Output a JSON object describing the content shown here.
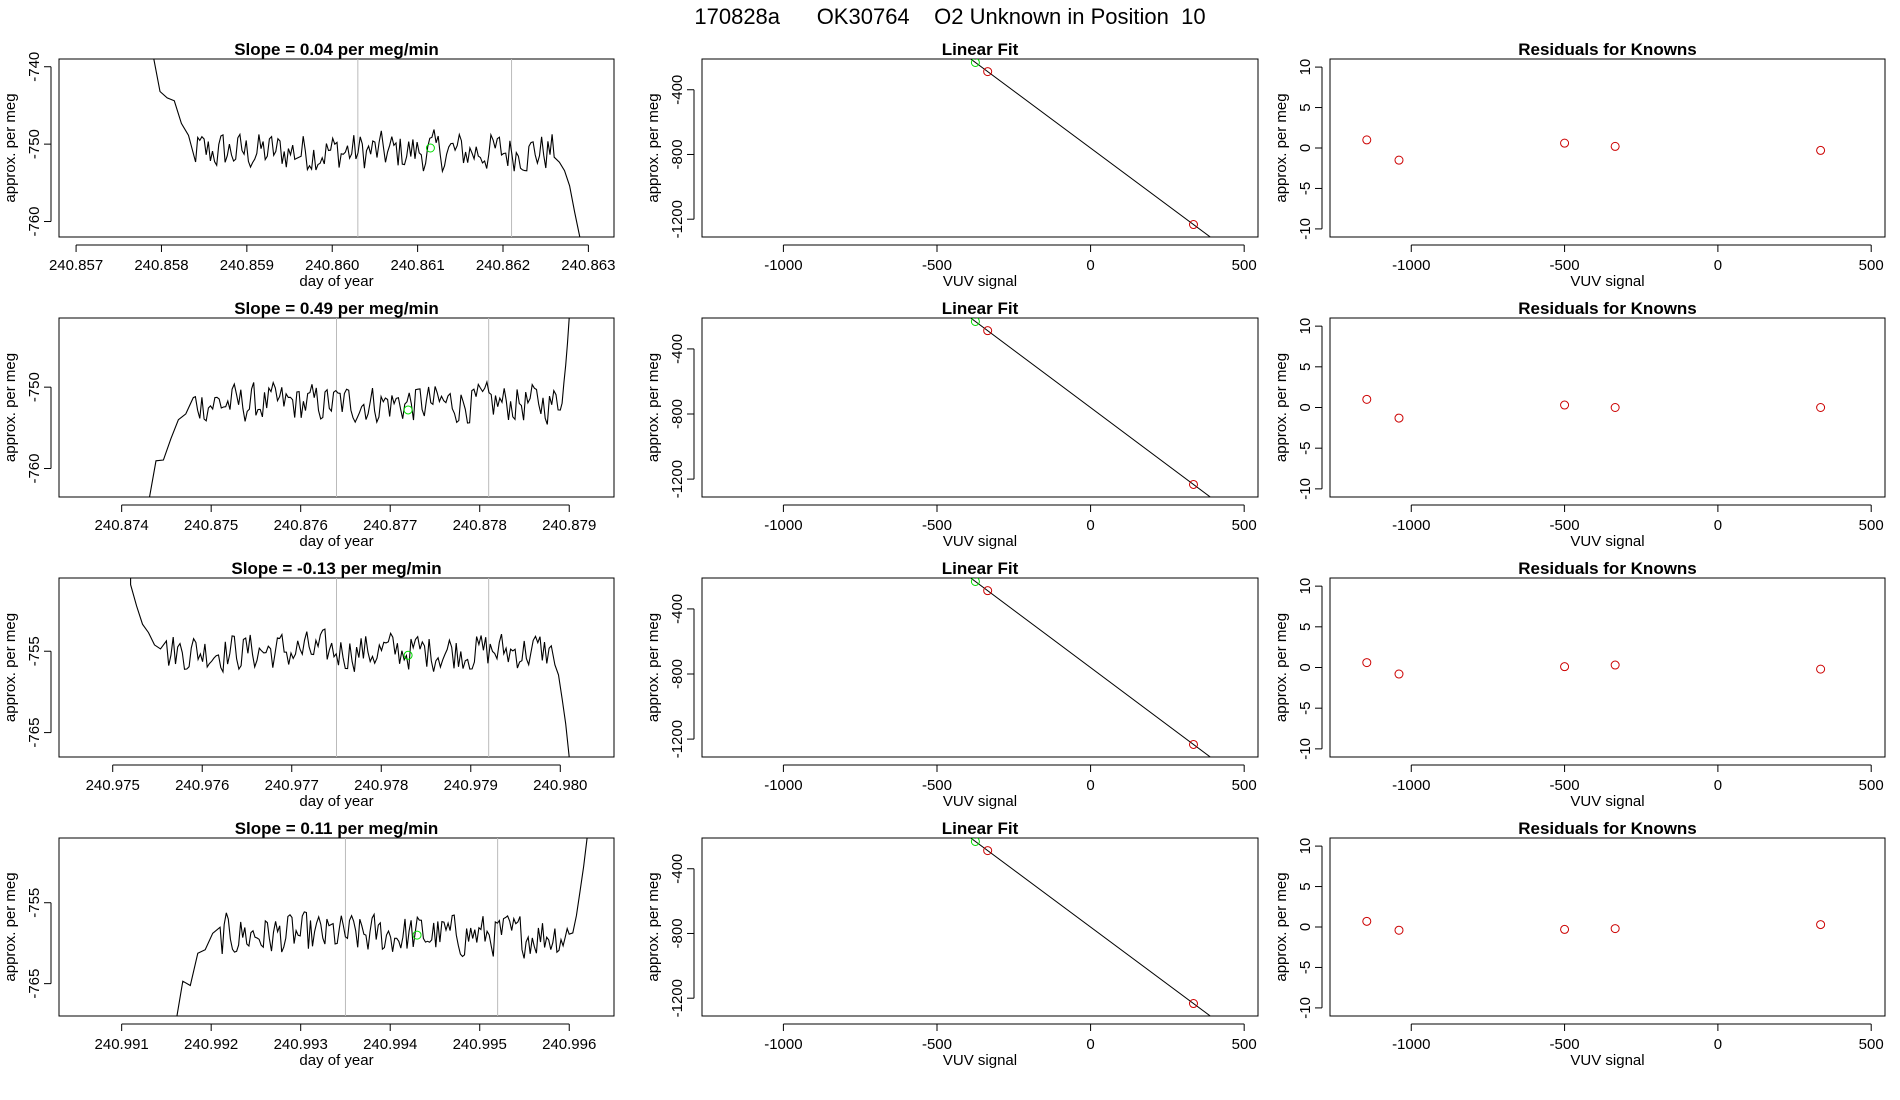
{
  "page": {
    "title": "170828a      OK30764    O2 Unknown in Position  10"
  },
  "colors": {
    "trace": "#000000",
    "known": "#cc0000",
    "unknown": "#00dd00",
    "marker": "#bbbbbb"
  },
  "fit_model": {
    "slope": -1.4106,
    "intercept": -760.4
  },
  "known_signal": [
    -1145,
    -1040,
    -500,
    -335,
    335
  ],
  "unknown_signal": -375,
  "chart_data": [
    {
      "type": "line",
      "kind": "trace",
      "title": "Slope =  0.04  per meg/min",
      "xlabel": "day of year",
      "ylabel": "approx. per meg",
      "xlim": [
        240.8568,
        240.8633
      ],
      "ylim": [
        -762,
        -739
      ],
      "xticks": [
        "240.857",
        "240.858",
        "240.859",
        "240.860",
        "240.861",
        "240.862",
        "240.863"
      ],
      "yticks": [
        "-740",
        "-750",
        "-760"
      ],
      "vlines": [
        240.8603,
        240.8621
      ],
      "unknown_point": [
        240.86115,
        -750.5
      ],
      "start": [
        240.8579,
        -739
      ],
      "flat_start": 240.8584,
      "flat_end": 240.8626,
      "end": [
        240.8629,
        -762
      ],
      "level": -751,
      "noise": 2.5
    },
    {
      "type": "scatter",
      "kind": "fit",
      "title": "Linear Fit",
      "xlabel": "VUV signal",
      "ylabel": "approx. per meg",
      "xlim": [
        -1265,
        545
      ],
      "ylim": [
        -1310,
        -210
      ],
      "xticks": [
        "-1000",
        "-500",
        "0",
        "500"
      ],
      "yticks": [
        "-400",
        "-800",
        "-1200"
      ],
      "fit_line_x": [
        -1200,
        450
      ]
    },
    {
      "type": "scatter",
      "kind": "resid",
      "title": "Residuals for Knowns",
      "xlabel": "VUV signal",
      "ylabel": "approx. per meg",
      "xlim": [
        -1265,
        545
      ],
      "ylim": [
        -11,
        11
      ],
      "xticks": [
        "-1000",
        "-500",
        "0",
        "500"
      ],
      "yticks": [
        "10",
        "5",
        "0",
        "-5",
        "-10"
      ],
      "residuals": [
        1.0,
        -1.5,
        0.6,
        0.2,
        -0.3
      ]
    },
    {
      "type": "line",
      "kind": "trace",
      "title": "Slope =  0.49  per meg/min",
      "xlabel": "day of year",
      "ylabel": "approx. per meg",
      "xlim": [
        240.8733,
        240.8795
      ],
      "ylim": [
        -763.5,
        -741.5
      ],
      "xticks": [
        "240.874",
        "240.875",
        "240.876",
        "240.877",
        "240.878",
        "240.879"
      ],
      "yticks": [
        "-750",
        "-760"
      ],
      "vlines": [
        240.8764,
        240.8781
      ],
      "unknown_point": [
        240.8772,
        -752.8
      ],
      "start": [
        240.8743,
        -763.5
      ],
      "flat_start": 240.8748,
      "flat_end": 240.8789,
      "end": [
        240.879,
        -741.5
      ],
      "level": -752,
      "noise": 2.3
    },
    {
      "type": "scatter",
      "kind": "fit",
      "title": "Linear Fit",
      "xlabel": "VUV signal",
      "ylabel": "approx. per meg",
      "xlim": [
        -1265,
        545
      ],
      "ylim": [
        -1310,
        -210
      ],
      "xticks": [
        "-1000",
        "-500",
        "0",
        "500"
      ],
      "yticks": [
        "-400",
        "-800",
        "-1200"
      ],
      "fit_line_x": [
        -1200,
        450
      ]
    },
    {
      "type": "scatter",
      "kind": "resid",
      "title": "Residuals for Knowns",
      "xlabel": "VUV signal",
      "ylabel": "approx. per meg",
      "xlim": [
        -1265,
        545
      ],
      "ylim": [
        -11,
        11
      ],
      "xticks": [
        "-1000",
        "-500",
        "0",
        "500"
      ],
      "yticks": [
        "10",
        "5",
        "0",
        "-5",
        "-10"
      ],
      "residuals": [
        1.0,
        -1.3,
        0.3,
        0.0,
        0.0
      ]
    },
    {
      "type": "line",
      "kind": "trace",
      "title": "Slope =  -0.13  per meg/min",
      "xlabel": "day of year",
      "ylabel": "approx. per meg",
      "xlim": [
        240.9744,
        240.9806
      ],
      "ylim": [
        -768,
        -746
      ],
      "xticks": [
        "240.975",
        "240.976",
        "240.977",
        "240.978",
        "240.979",
        "240.980"
      ],
      "yticks": [
        "-755",
        "-765"
      ],
      "vlines": [
        240.9775,
        240.9792
      ],
      "unknown_point": [
        240.9783,
        -755.5
      ],
      "start": [
        240.9752,
        -746
      ],
      "flat_start": 240.9756,
      "flat_end": 240.9799,
      "end": [
        240.9801,
        -768
      ],
      "level": -755,
      "noise": 2.3
    },
    {
      "type": "scatter",
      "kind": "fit",
      "title": "Linear Fit",
      "xlabel": "VUV signal",
      "ylabel": "approx. per meg",
      "xlim": [
        -1265,
        545
      ],
      "ylim": [
        -1310,
        -210
      ],
      "xticks": [
        "-1000",
        "-500",
        "0",
        "500"
      ],
      "yticks": [
        "-400",
        "-800",
        "-1200"
      ],
      "fit_line_x": [
        -1200,
        450
      ]
    },
    {
      "type": "scatter",
      "kind": "resid",
      "title": "Residuals for Knowns",
      "xlabel": "VUV signal",
      "ylabel": "approx. per meg",
      "xlim": [
        -1265,
        545
      ],
      "ylim": [
        -11,
        11
      ],
      "xticks": [
        "-1000",
        "-500",
        "0",
        "500"
      ],
      "yticks": [
        "10",
        "5",
        "0",
        "-5",
        "-10"
      ],
      "residuals": [
        0.6,
        -0.8,
        0.1,
        0.3,
        -0.2
      ]
    },
    {
      "type": "line",
      "kind": "trace",
      "title": "Slope =  0.11  per meg/min",
      "xlabel": "day of year",
      "ylabel": "approx. per meg",
      "xlim": [
        240.9903,
        240.9965
      ],
      "ylim": [
        -769,
        -747
      ],
      "xticks": [
        "240.991",
        "240.992",
        "240.993",
        "240.994",
        "240.995",
        "240.996"
      ],
      "yticks": [
        "-755",
        "-765"
      ],
      "vlines": [
        240.9935,
        240.9952
      ],
      "unknown_point": [
        240.9943,
        -759
      ],
      "start": [
        240.9916,
        -769
      ],
      "flat_start": 240.9921,
      "flat_end": 240.996,
      "end": [
        240.9962,
        -747
      ],
      "level": -759,
      "noise": 2.5
    },
    {
      "type": "scatter",
      "kind": "fit",
      "title": "Linear Fit",
      "xlabel": "VUV signal",
      "ylabel": "approx. per meg",
      "xlim": [
        -1265,
        545
      ],
      "ylim": [
        -1310,
        -210
      ],
      "xticks": [
        "-1000",
        "-500",
        "0",
        "500"
      ],
      "yticks": [
        "-400",
        "-800",
        "-1200"
      ],
      "fit_line_x": [
        -1200,
        450
      ]
    },
    {
      "type": "scatter",
      "kind": "resid",
      "title": "Residuals for Knowns",
      "xlabel": "VUV signal",
      "ylabel": "approx. per meg",
      "xlim": [
        -1265,
        545
      ],
      "ylim": [
        -11,
        11
      ],
      "xticks": [
        "-1000",
        "-500",
        "0",
        "500"
      ],
      "yticks": [
        "10",
        "5",
        "0",
        "-5",
        "-10"
      ],
      "residuals": [
        0.7,
        -0.4,
        -0.3,
        -0.2,
        0.3
      ]
    }
  ]
}
